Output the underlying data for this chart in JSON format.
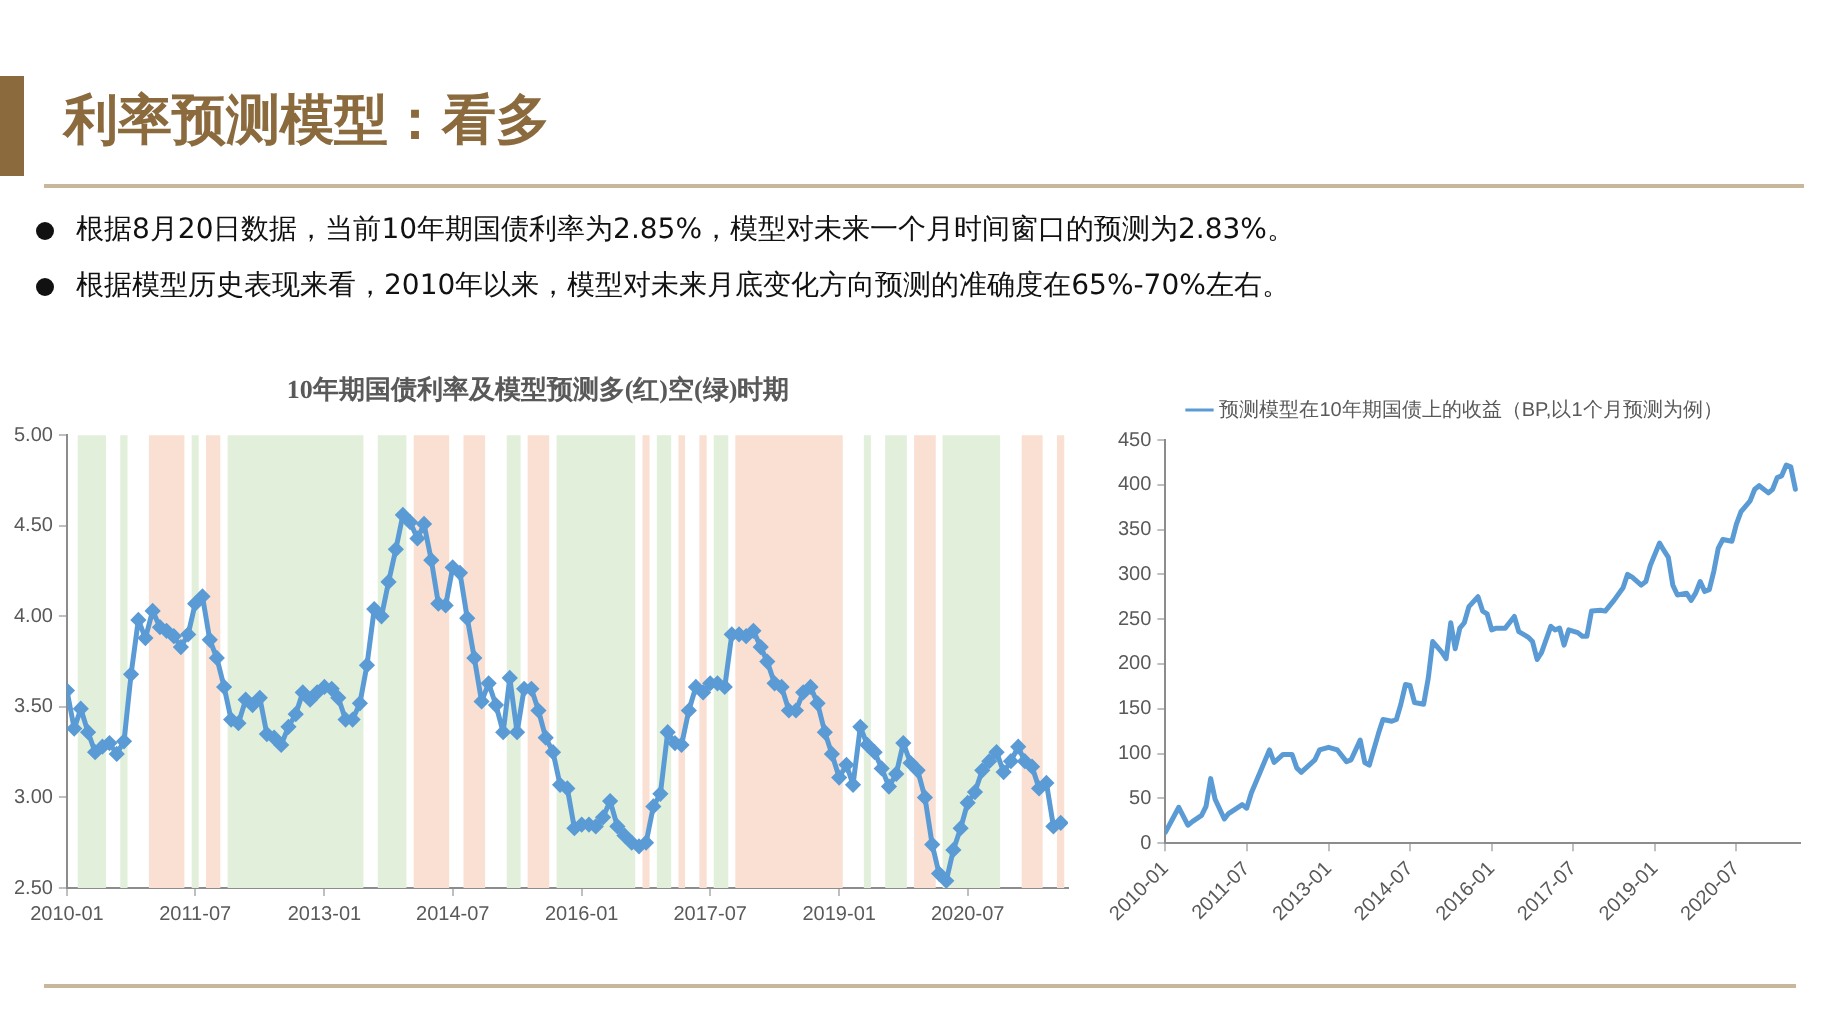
{
  "chart_data": [
    {
      "type": "other",
      "title": "利率预测模型：看多",
      "annotations": [
        "根据8月20日数据，当前10年期国债利率为2.85%，模型对未来一个月时间窗口的预测为2.83%。",
        "根据模型历史表现来看，2010年以来，模型对未来月底变化方向预测的准确度在65%-70%左右。"
      ]
    },
    {
      "type": "line",
      "title": "10年期国债利率及模型预测多(红)空(绿)时期",
      "marker": "diamond",
      "x": [
        "2010-01",
        "2010-02",
        "2010-03",
        "2010-04",
        "2010-05",
        "2010-06",
        "2010-07",
        "2010-08",
        "2010-09",
        "2010-10",
        "2010-11",
        "2010-12",
        "2011-01",
        "2011-02",
        "2011-03",
        "2011-04",
        "2011-05",
        "2011-06",
        "2011-07",
        "2011-08",
        "2011-09",
        "2011-10",
        "2011-11",
        "2011-12",
        "2012-01",
        "2012-02",
        "2012-03",
        "2012-04",
        "2012-05",
        "2012-06",
        "2012-07",
        "2012-08",
        "2012-09",
        "2012-10",
        "2012-11",
        "2012-12",
        "2013-01",
        "2013-02",
        "2013-03",
        "2013-04",
        "2013-05",
        "2013-06",
        "2013-07",
        "2013-08",
        "2013-09",
        "2013-10",
        "2013-11",
        "2013-12",
        "2014-01",
        "2014-02",
        "2014-03",
        "2014-04",
        "2014-05",
        "2014-06",
        "2014-07",
        "2014-08",
        "2014-09",
        "2014-10",
        "2014-11",
        "2014-12",
        "2015-01",
        "2015-02",
        "2015-03",
        "2015-04",
        "2015-05",
        "2015-06",
        "2015-07",
        "2015-08",
        "2015-09",
        "2015-10",
        "2015-11",
        "2015-12",
        "2016-01",
        "2016-02",
        "2016-03",
        "2016-04",
        "2016-05",
        "2016-06",
        "2016-07",
        "2016-08",
        "2016-09",
        "2016-10",
        "2016-11",
        "2016-12",
        "2017-01",
        "2017-02",
        "2017-03",
        "2017-04",
        "2017-05",
        "2017-06",
        "2017-07",
        "2017-08",
        "2017-09",
        "2017-10",
        "2017-11",
        "2017-12",
        "2018-01",
        "2018-02",
        "2018-03",
        "2018-04",
        "2018-05",
        "2018-06",
        "2018-07",
        "2018-08",
        "2018-09",
        "2018-10",
        "2018-11",
        "2018-12",
        "2019-01",
        "2019-02",
        "2019-03",
        "2019-04",
        "2019-05",
        "2019-06",
        "2019-07",
        "2019-08",
        "2019-09",
        "2019-10",
        "2019-11",
        "2019-12",
        "2020-01",
        "2020-02",
        "2020-03",
        "2020-04",
        "2020-05",
        "2020-06",
        "2020-07",
        "2020-08",
        "2020-09",
        "2020-10",
        "2020-11",
        "2020-12",
        "2021-01",
        "2021-02",
        "2021-03",
        "2021-04",
        "2021-05",
        "2021-06",
        "2021-07",
        "2021-08"
      ],
      "series": [
        {
          "color": "#5b9bd5",
          "values": [
            3.59,
            3.38,
            3.49,
            3.36,
            3.25,
            3.28,
            3.3,
            3.24,
            3.31,
            3.68,
            3.98,
            3.88,
            4.03,
            3.94,
            3.92,
            3.89,
            3.83,
            3.9,
            4.07,
            4.11,
            3.87,
            3.77,
            3.61,
            3.43,
            3.41,
            3.54,
            3.51,
            3.55,
            3.35,
            3.33,
            3.29,
            3.39,
            3.46,
            3.58,
            3.54,
            3.58,
            3.61,
            3.6,
            3.55,
            3.43,
            3.43,
            3.52,
            3.73,
            4.04,
            4.0,
            4.19,
            4.37,
            4.56,
            4.52,
            4.43,
            4.51,
            4.31,
            4.07,
            4.06,
            4.27,
            4.24,
            3.99,
            3.77,
            3.53,
            3.63,
            3.51,
            3.36,
            3.66,
            3.36,
            3.6,
            3.6,
            3.48,
            3.33,
            3.25,
            3.07,
            3.05,
            2.83,
            2.85,
            2.85,
            2.84,
            2.89,
            2.98,
            2.84,
            2.79,
            2.75,
            2.73,
            2.75,
            2.95,
            3.02,
            3.36,
            3.3,
            3.29,
            3.48,
            3.61,
            3.58,
            3.63,
            3.63,
            3.61,
            3.9,
            3.9,
            3.89,
            3.92,
            3.83,
            3.75,
            3.63,
            3.61,
            3.48,
            3.48,
            3.58,
            3.61,
            3.52,
            3.36,
            3.24,
            3.11,
            3.18,
            3.07,
            3.39,
            3.29,
            3.25,
            3.16,
            3.06,
            3.13,
            3.3,
            3.19,
            3.15,
            3.0,
            2.74,
            2.58,
            2.54,
            2.71,
            2.83,
            2.97,
            3.03,
            3.15,
            3.2,
            3.25,
            3.14,
            3.2,
            3.28,
            3.2,
            3.17,
            3.05,
            3.08,
            2.84,
            2.86
          ]
        }
      ],
      "xlim": [
        "2010-01",
        "2021-09"
      ],
      "xticks": [
        "2010-01",
        "2011-07",
        "2013-01",
        "2014-07",
        "2016-01",
        "2017-07",
        "2019-01",
        "2020-07"
      ],
      "ylim": [
        2.5,
        5
      ],
      "yticks": [
        {
          "value": 2.5,
          "label": "2.50"
        },
        {
          "value": 3,
          "label": "3.00"
        },
        {
          "value": 3.5,
          "label": "3.50"
        },
        {
          "value": 4,
          "label": "4.00"
        },
        {
          "value": 4.5,
          "label": "4.50"
        },
        {
          "value": 5,
          "label": "5.00"
        }
      ],
      "bands": [
        {
          "axis": "x",
          "from": "2010-02-16",
          "to": "2010-06-16",
          "color": "#e2efda"
        },
        {
          "axis": "x",
          "from": "2010-08-16",
          "to": "2010-09-16",
          "color": "#e2efda"
        },
        {
          "axis": "x",
          "from": "2010-12-16",
          "to": "2011-05-16",
          "color": "#f9e0d2"
        },
        {
          "axis": "x",
          "from": "2011-06-16",
          "to": "2011-07-16",
          "color": "#e2efda"
        },
        {
          "axis": "x",
          "from": "2011-08-16",
          "to": "2011-10-16",
          "color": "#f9e0d2"
        },
        {
          "axis": "x",
          "from": "2011-11-16",
          "to": "2013-06-16",
          "color": "#e2efda"
        },
        {
          "axis": "x",
          "from": "2013-08-16",
          "to": "2013-12-16",
          "color": "#e2efda"
        },
        {
          "axis": "x",
          "from": "2014-01-16",
          "to": "2014-06-16",
          "color": "#f9e0d2"
        },
        {
          "axis": "x",
          "from": "2014-08-16",
          "to": "2014-11-16",
          "color": "#f9e0d2"
        },
        {
          "axis": "x",
          "from": "2015-02-16",
          "to": "2015-04-16",
          "color": "#e2efda"
        },
        {
          "axis": "x",
          "from": "2015-05-16",
          "to": "2015-08-16",
          "color": "#f9e0d2"
        },
        {
          "axis": "x",
          "from": "2015-09-16",
          "to": "2016-08-16",
          "color": "#e2efda"
        },
        {
          "axis": "x",
          "from": "2016-09-16",
          "to": "2016-10-16",
          "color": "#f9e0d2"
        },
        {
          "axis": "x",
          "from": "2016-11-16",
          "to": "2017-01-16",
          "color": "#e2efda"
        },
        {
          "axis": "x",
          "from": "2017-02-16",
          "to": "2017-03-16",
          "color": "#f9e0d2"
        },
        {
          "axis": "x",
          "from": "2017-05-16",
          "to": "2017-06-16",
          "color": "#f9e0d2"
        },
        {
          "axis": "x",
          "from": "2017-07-16",
          "to": "2017-09-16",
          "color": "#e2efda"
        },
        {
          "axis": "x",
          "from": "2017-10-16",
          "to": "2019-01-16",
          "color": "#f9e0d2"
        },
        {
          "axis": "x",
          "from": "2019-04-16",
          "to": "2019-05-16",
          "color": "#e2efda"
        },
        {
          "axis": "x",
          "from": "2019-07-16",
          "to": "2019-10-16",
          "color": "#e2efda"
        },
        {
          "axis": "x",
          "from": "2019-11-16",
          "to": "2020-02-16",
          "color": "#f9e0d2"
        },
        {
          "axis": "x",
          "from": "2020-03-16",
          "to": "2020-11-16",
          "color": "#e2efda"
        },
        {
          "axis": "x",
          "from": "2021-02-16",
          "to": "2021-05-16",
          "color": "#f9e0d2"
        },
        {
          "axis": "x",
          "from": "2021-07-16",
          "to": "2021-08-16",
          "color": "#f9e0d2"
        }
      ]
    },
    {
      "type": "line",
      "legend": "top",
      "marker": "none",
      "x": [
        "2010-01",
        "2010-04",
        "2010-06",
        "2010-07",
        "2010-09",
        "2010-10",
        "2010-11",
        "2010-12",
        "2011-02",
        "2011-03",
        "2011-06",
        "2011-07",
        "2011-08",
        "2011-10",
        "2011-12",
        "2012-01",
        "2012-03",
        "2012-05",
        "2012-06",
        "2012-07",
        "2012-10",
        "2012-11",
        "2013-01",
        "2013-03",
        "2013-05",
        "2013-06",
        "2013-08",
        "2013-09",
        "2013-10",
        "2013-12",
        "2014-01",
        "2014-03",
        "2014-04",
        "2014-05",
        "2014-06",
        "2014-07",
        "2014-08",
        "2014-10",
        "2014-11",
        "2014-12",
        "2015-02",
        "2015-03",
        "2015-04",
        "2015-05",
        "2015-06",
        "2015-07",
        "2015-08",
        "2015-10",
        "2015-11",
        "2015-12",
        "2016-01",
        "2016-02",
        "2016-04",
        "2016-06",
        "2016-07",
        "2016-09",
        "2016-10",
        "2016-11",
        "2016-12",
        "2017-02",
        "2017-03",
        "2017-04",
        "2017-05",
        "2017-06",
        "2017-08",
        "2017-09",
        "2017-10",
        "2017-11",
        "2018-01",
        "2018-02",
        "2018-04",
        "2018-06",
        "2018-07",
        "2018-08",
        "2018-10",
        "2018-11",
        "2018-12",
        "2019-02",
        "2019-03",
        "2019-04",
        "2019-05",
        "2019-06",
        "2019-08",
        "2019-09",
        "2019-10",
        "2019-11",
        "2019-12",
        "2020-01",
        "2020-02",
        "2020-03",
        "2020-04",
        "2020-06",
        "2020-07",
        "2020-08",
        "2020-10",
        "2020-11",
        "2020-12",
        "2021-02",
        "2021-03",
        "2021-04",
        "2021-05",
        "2021-06",
        "2021-07",
        "2021-08"
      ],
      "series": [
        {
          "name": "预测模型在10年期国债上的收益（BP,以1个月预测为例）",
          "color": "#5b9bd5",
          "values": [
            12,
            40,
            20,
            24,
            31,
            41,
            72,
            49,
            27,
            33,
            43,
            39,
            56,
            80,
            104,
            90,
            99,
            99,
            84,
            79,
            93,
            104,
            107,
            104,
            91,
            93,
            115,
            90,
            87,
            122,
            138,
            136,
            138,
            155,
            177,
            176,
            157,
            155,
            184,
            225,
            213,
            206,
            246,
            217,
            240,
            246,
            264,
            275,
            259,
            256,
            238,
            240,
            240,
            253,
            236,
            230,
            225,
            205,
            213,
            242,
            238,
            240,
            221,
            238,
            235,
            231,
            231,
            259,
            260,
            259,
            271,
            285,
            300,
            297,
            288,
            292,
            310,
            335,
            327,
            319,
            288,
            277,
            279,
            271,
            279,
            292,
            281,
            283,
            304,
            329,
            339,
            337,
            356,
            370,
            382,
            395,
            399,
            391,
            395,
            408,
            410,
            422,
            420,
            395
          ]
        }
      ],
      "xlim": [
        "2010-01",
        "2021-09"
      ],
      "xticks": [
        "2010-01",
        "2011-07",
        "2013-01",
        "2014-07",
        "2016-01",
        "2017-07",
        "2019-01",
        "2020-07"
      ],
      "ylim": [
        0,
        450
      ],
      "yticks": [
        0,
        50,
        100,
        150,
        200,
        250,
        300,
        350,
        400,
        450
      ]
    }
  ]
}
